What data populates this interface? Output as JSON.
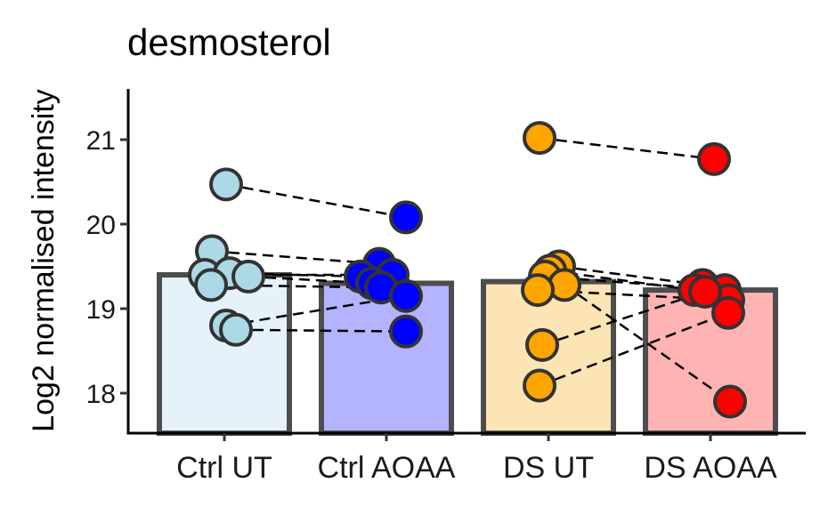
{
  "chart_data": {
    "type": "bar",
    "title": "desmosterol",
    "ylabel": "Log2 normalised intensity",
    "xlabel": "",
    "ylim": [
      17.55,
      21.6
    ],
    "yticks": [
      18,
      19,
      20,
      21
    ],
    "categories": [
      "Ctrl UT",
      "Ctrl AOAA",
      "DS UT",
      "DS AOAA"
    ],
    "bar_values": [
      19.4,
      19.3,
      19.32,
      19.22
    ],
    "bar_fill_colors": [
      "#e6f2f9",
      "#b3b3ff",
      "#fde4b4",
      "#ffb3b3"
    ],
    "point_colors": [
      "#add8e6",
      "#0000ff",
      "#ffa500",
      "#ff0000"
    ],
    "border_color": "#4d4d4d",
    "connector_style": "dashed",
    "points": [
      [
        20.47,
        19.68,
        19.4,
        19.42,
        19.38,
        19.28,
        18.8,
        18.75
      ],
      [
        20.08,
        19.53,
        19.4,
        19.38,
        19.3,
        19.25,
        19.15,
        18.73
      ],
      [
        21.02,
        19.5,
        19.45,
        19.38,
        19.28,
        19.22,
        18.57,
        18.09
      ],
      [
        20.77,
        19.28,
        19.22,
        19.22,
        19.1,
        19.2,
        18.95,
        17.9
      ]
    ],
    "pairs": [
      [
        [
          0,
          0
        ],
        [
          1,
          0
        ]
      ],
      [
        [
          0,
          1
        ],
        [
          1,
          1
        ]
      ],
      [
        [
          0,
          2
        ],
        [
          1,
          2
        ]
      ],
      [
        [
          0,
          3
        ],
        [
          1,
          3
        ]
      ],
      [
        [
          0,
          4
        ],
        [
          1,
          4
        ]
      ],
      [
        [
          0,
          5
        ],
        [
          1,
          5
        ]
      ],
      [
        [
          0,
          6
        ],
        [
          1,
          6
        ]
      ],
      [
        [
          0,
          7
        ],
        [
          1,
          7
        ]
      ],
      [
        [
          2,
          0
        ],
        [
          3,
          0
        ]
      ],
      [
        [
          2,
          1
        ],
        [
          3,
          1
        ]
      ],
      [
        [
          2,
          2
        ],
        [
          3,
          2
        ]
      ],
      [
        [
          2,
          3
        ],
        [
          3,
          3
        ]
      ],
      [
        [
          2,
          4
        ],
        [
          3,
          7
        ]
      ],
      [
        [
          2,
          5
        ],
        [
          3,
          4
        ]
      ],
      [
        [
          2,
          6
        ],
        [
          3,
          5
        ]
      ],
      [
        [
          2,
          7
        ],
        [
          3,
          6
        ]
      ]
    ]
  }
}
